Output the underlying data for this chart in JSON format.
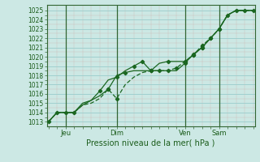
{
  "title": "Pression niveau de la mer( hPa )",
  "ylabel_values": [
    1013,
    1014,
    1015,
    1016,
    1017,
    1018,
    1019,
    1020,
    1021,
    1022,
    1023,
    1024,
    1025
  ],
  "ylim": [
    1012.5,
    1025.6
  ],
  "background_color": "#cce8e4",
  "grid_major_color": "#99cccc",
  "grid_minor_color": "#ccaaaa",
  "line_color": "#1a6620",
  "xtick_labels": [
    "Jeu",
    "Dim",
    "Ven",
    "Sam"
  ],
  "series1_x": [
    0,
    1,
    2,
    3,
    4,
    5,
    6,
    7,
    8,
    9,
    10,
    11,
    12,
    13,
    14,
    15,
    16,
    17,
    18,
    19,
    20,
    21,
    22,
    23,
    24
  ],
  "series1_y": [
    1013.0,
    1014.0,
    1014.0,
    1014.0,
    1015.0,
    1015.3,
    1015.8,
    1016.5,
    1018.0,
    1018.3,
    1018.5,
    1018.5,
    1018.5,
    1019.3,
    1019.5,
    1019.5,
    1019.5,
    1020.2,
    1021.0,
    1022.0,
    1023.0,
    1024.5,
    1025.0,
    1025.0,
    1025.0
  ],
  "series2_x": [
    0,
    1,
    2,
    3,
    4,
    5,
    6,
    7,
    8,
    9,
    10,
    11,
    12,
    13,
    14,
    15,
    16,
    17,
    18,
    19,
    20,
    21,
    22,
    23,
    24
  ],
  "series2_y": [
    1013.0,
    1014.0,
    1014.0,
    1014.0,
    1014.8,
    1015.0,
    1015.5,
    1016.5,
    1015.5,
    1017.0,
    1017.8,
    1018.3,
    1018.5,
    1018.5,
    1018.5,
    1018.8,
    1019.5,
    1020.2,
    1021.2,
    1022.0,
    1023.0,
    1024.5,
    1025.0,
    1025.0,
    1025.0
  ],
  "series3_x": [
    0,
    1,
    2,
    3,
    4,
    5,
    6,
    7,
    8,
    9,
    10,
    11,
    12,
    13,
    14,
    15,
    16,
    17,
    18,
    19,
    20,
    21,
    22,
    23,
    24
  ],
  "series3_y": [
    1013.0,
    1014.0,
    1014.0,
    1014.0,
    1014.8,
    1015.3,
    1016.3,
    1017.5,
    1017.8,
    1018.5,
    1019.0,
    1019.5,
    1018.5,
    1018.5,
    1018.5,
    1018.5,
    1019.3,
    1020.3,
    1021.0,
    1022.0,
    1023.0,
    1024.5,
    1025.0,
    1025.0,
    1025.0
  ],
  "markers1_x": [
    0,
    1,
    2,
    3,
    7,
    9,
    12,
    14,
    16,
    17,
    18,
    19,
    20,
    21,
    22,
    23,
    24
  ],
  "markers1_y": [
    1013.0,
    1014.0,
    1014.0,
    1014.0,
    1016.5,
    1018.3,
    1018.5,
    1019.5,
    1019.5,
    1020.2,
    1021.0,
    1022.0,
    1023.0,
    1024.5,
    1025.0,
    1025.0,
    1025.0
  ],
  "markers2_x": [
    7,
    8,
    12,
    14,
    15,
    16,
    17,
    18,
    19,
    20
  ],
  "markers2_y": [
    1016.5,
    1015.5,
    1018.5,
    1018.5,
    1018.8,
    1019.5,
    1020.2,
    1021.2,
    1022.0,
    1023.0
  ],
  "markers3_x": [
    6,
    8,
    10,
    11,
    12,
    13,
    16,
    17,
    18
  ],
  "markers3_y": [
    1016.3,
    1017.8,
    1019.0,
    1019.5,
    1018.5,
    1018.5,
    1019.3,
    1020.3,
    1021.0
  ],
  "vline_positions": [
    2,
    8,
    16,
    20
  ],
  "xtick_x": [
    2,
    8,
    16,
    20
  ]
}
